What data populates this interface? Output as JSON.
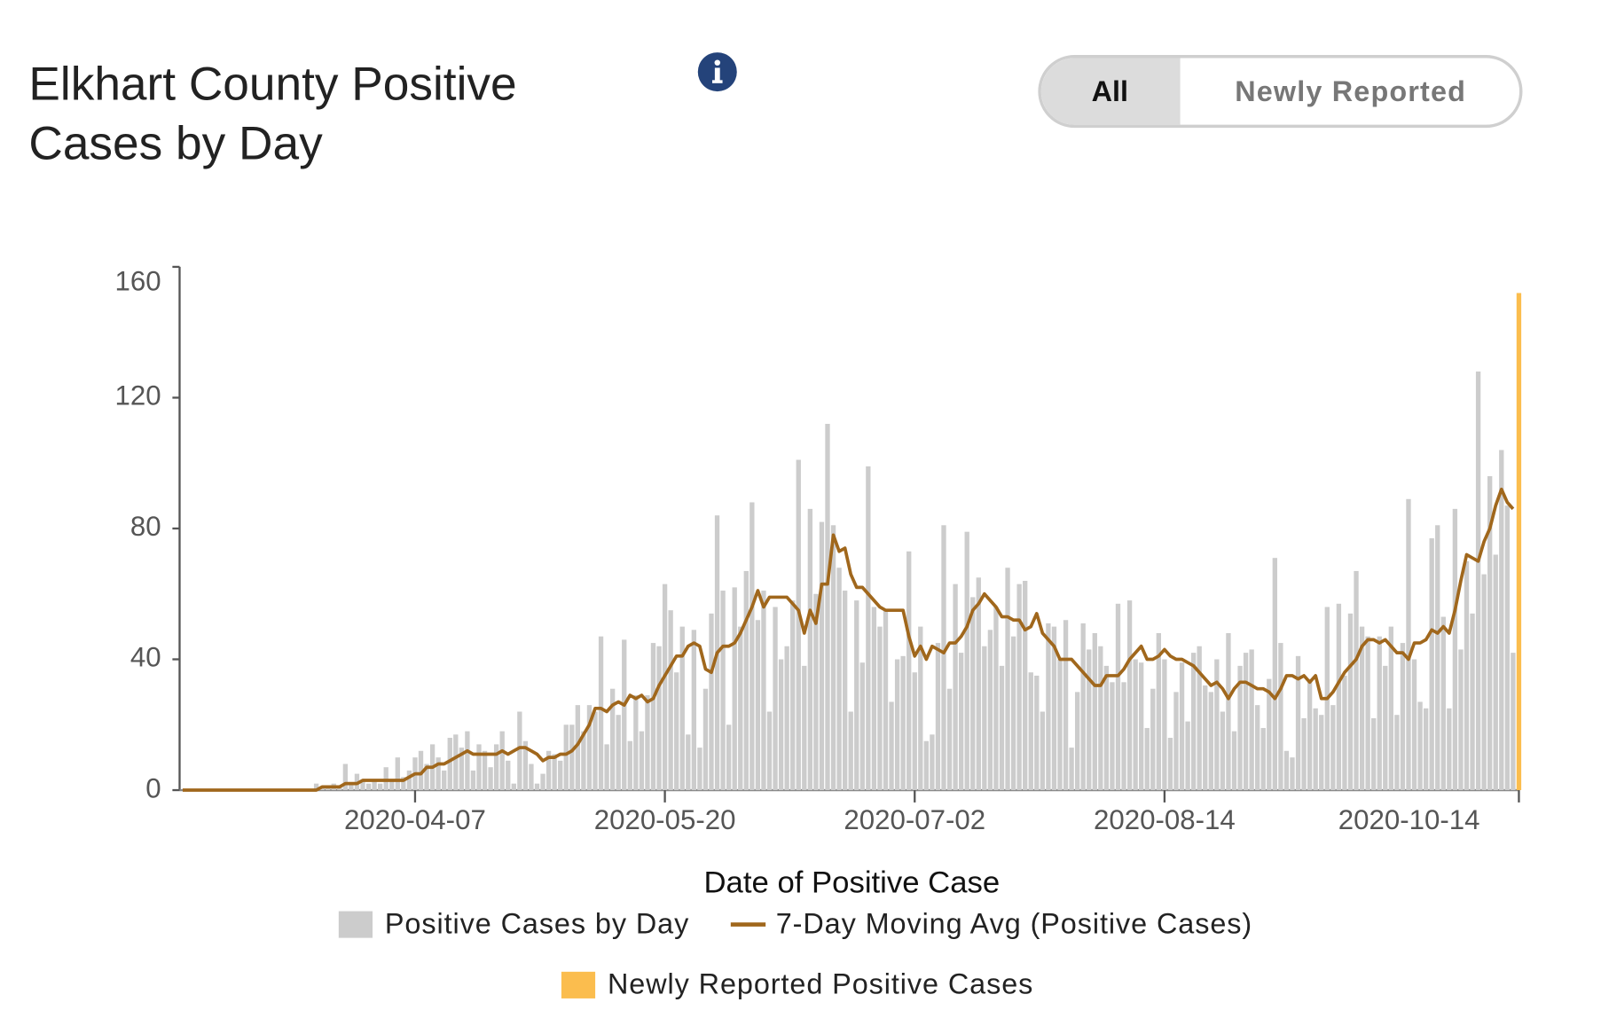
{
  "chart_data": {
    "type": "bar",
    "title": "Elkhart County Positive Cases by Day",
    "x_label": "Date of Positive Case",
    "x": [
      "2020-02-27",
      "2020-02-28",
      "2020-02-29",
      "2020-03-01",
      "2020-03-02",
      "2020-03-03",
      "2020-03-04",
      "2020-03-05",
      "2020-03-06",
      "2020-03-07",
      "2020-03-08",
      "2020-03-09",
      "2020-03-10",
      "2020-03-11",
      "2020-03-12",
      "2020-03-13",
      "2020-03-14",
      "2020-03-15",
      "2020-03-16",
      "2020-03-17",
      "2020-03-18",
      "2020-03-19",
      "2020-03-20",
      "2020-03-21",
      "2020-03-22",
      "2020-03-23",
      "2020-03-24",
      "2020-03-25",
      "2020-03-26",
      "2020-03-27",
      "2020-03-28",
      "2020-03-29",
      "2020-03-30",
      "2020-03-31",
      "2020-04-01",
      "2020-04-02",
      "2020-04-03",
      "2020-04-04",
      "2020-04-05",
      "2020-04-06",
      "2020-04-07",
      "2020-04-08",
      "2020-04-09",
      "2020-04-10",
      "2020-04-11",
      "2020-04-12",
      "2020-04-13",
      "2020-04-14",
      "2020-04-15",
      "2020-04-16",
      "2020-04-17",
      "2020-04-18",
      "2020-04-19",
      "2020-04-20",
      "2020-04-21",
      "2020-04-22",
      "2020-04-23",
      "2020-04-24",
      "2020-04-25",
      "2020-04-26",
      "2020-04-27",
      "2020-04-28",
      "2020-04-29",
      "2020-04-30",
      "2020-05-01",
      "2020-05-02",
      "2020-05-03",
      "2020-05-04",
      "2020-05-05",
      "2020-05-06",
      "2020-05-07",
      "2020-05-08",
      "2020-05-09",
      "2020-05-10",
      "2020-05-11",
      "2020-05-12",
      "2020-05-13",
      "2020-05-14",
      "2020-05-15",
      "2020-05-16",
      "2020-05-17",
      "2020-05-18",
      "2020-05-19",
      "2020-05-20",
      "2020-05-21",
      "2020-05-22",
      "2020-05-23",
      "2020-05-24",
      "2020-05-25",
      "2020-05-26",
      "2020-05-27",
      "2020-05-28",
      "2020-05-29",
      "2020-05-30",
      "2020-05-31",
      "2020-06-01",
      "2020-06-02",
      "2020-06-03",
      "2020-06-04",
      "2020-06-05",
      "2020-06-06",
      "2020-06-07",
      "2020-06-08",
      "2020-06-09",
      "2020-06-10",
      "2020-06-11",
      "2020-06-12",
      "2020-06-13",
      "2020-06-14",
      "2020-06-15",
      "2020-06-16",
      "2020-06-17",
      "2020-06-18",
      "2020-06-19",
      "2020-06-20",
      "2020-06-21",
      "2020-06-22",
      "2020-06-23",
      "2020-06-24",
      "2020-06-25",
      "2020-06-26",
      "2020-06-27",
      "2020-06-28",
      "2020-06-29",
      "2020-06-30",
      "2020-07-01",
      "2020-07-02",
      "2020-07-03",
      "2020-07-04",
      "2020-07-05",
      "2020-07-06",
      "2020-07-07",
      "2020-07-08",
      "2020-07-09",
      "2020-07-10",
      "2020-07-11",
      "2020-07-12",
      "2020-07-13",
      "2020-07-14",
      "2020-07-15",
      "2020-07-16",
      "2020-07-17",
      "2020-07-18",
      "2020-07-19",
      "2020-07-20",
      "2020-07-21",
      "2020-07-22",
      "2020-07-23",
      "2020-07-24",
      "2020-07-25",
      "2020-07-26",
      "2020-07-27",
      "2020-07-28",
      "2020-07-29",
      "2020-07-30",
      "2020-07-31",
      "2020-08-01",
      "2020-08-02",
      "2020-08-03",
      "2020-08-04",
      "2020-08-05",
      "2020-08-06",
      "2020-08-07",
      "2020-08-08",
      "2020-08-09",
      "2020-08-10",
      "2020-08-11",
      "2020-08-12",
      "2020-08-13",
      "2020-08-14",
      "2020-08-15",
      "2020-08-16",
      "2020-08-17",
      "2020-08-18",
      "2020-08-19",
      "2020-08-20",
      "2020-08-21",
      "2020-08-22",
      "2020-08-23",
      "2020-08-24",
      "2020-08-25",
      "2020-08-26",
      "2020-08-27",
      "2020-08-28",
      "2020-08-29",
      "2020-08-30",
      "2020-08-31",
      "2020-09-01",
      "2020-09-02",
      "2020-09-03",
      "2020-09-04",
      "2020-09-05",
      "2020-09-06",
      "2020-09-07",
      "2020-09-08",
      "2020-09-09",
      "2020-09-10",
      "2020-09-11",
      "2020-09-12",
      "2020-09-13",
      "2020-09-14",
      "2020-09-15",
      "2020-09-16",
      "2020-09-17",
      "2020-09-18",
      "2020-09-19",
      "2020-09-20",
      "2020-09-21",
      "2020-09-22",
      "2020-09-23",
      "2020-09-24",
      "2020-09-25",
      "2020-09-26",
      "2020-09-27",
      "2020-09-28",
      "2020-09-29",
      "2020-09-30",
      "2020-10-01",
      "2020-10-02",
      "2020-10-03",
      "2020-10-04",
      "2020-10-05",
      "2020-10-06",
      "2020-10-07",
      "2020-10-08",
      "2020-10-09",
      "2020-10-10",
      "2020-10-11",
      "2020-10-12",
      "2020-10-13",
      "2020-10-14"
    ],
    "series": [
      {
        "name": "Positive Cases by Day",
        "type": "bar",
        "color": "#cccccc",
        "values": [
          0,
          0,
          0,
          0,
          0,
          0,
          0,
          0,
          0,
          0,
          0,
          0,
          0,
          0,
          0,
          0,
          0,
          0,
          0,
          0,
          0,
          0,
          0,
          2,
          1,
          1,
          2,
          1,
          8,
          2,
          5,
          3,
          2,
          3,
          2,
          7,
          3,
          10,
          4,
          6,
          10,
          12,
          8,
          14,
          10,
          6,
          16,
          17,
          13,
          18,
          6,
          14,
          12,
          7,
          14,
          18,
          9,
          2,
          24,
          15,
          8,
          2,
          5,
          12,
          11,
          9,
          20,
          20,
          26,
          18,
          26,
          24,
          47,
          14,
          31,
          23,
          46,
          15,
          29,
          18,
          29,
          45,
          44,
          63,
          55,
          36,
          50,
          17,
          49,
          13,
          31,
          54,
          84,
          61,
          20,
          62,
          50,
          67,
          88,
          52,
          61,
          24,
          56,
          40,
          44,
          58,
          101,
          38,
          86,
          60,
          82,
          112,
          81,
          68,
          61,
          24,
          58,
          39,
          99,
          56,
          50,
          55,
          27,
          40,
          41,
          73,
          36,
          50,
          15,
          17,
          45,
          81,
          31,
          63,
          42,
          79,
          59,
          65,
          44,
          49,
          56,
          38,
          68,
          47,
          63,
          64,
          36,
          35,
          24,
          51,
          50,
          40,
          52,
          13,
          30,
          51,
          43,
          48,
          44,
          38,
          33,
          57,
          33,
          58,
          40,
          39,
          19,
          31,
          48,
          40,
          16,
          30,
          39,
          21,
          42,
          44,
          32,
          30,
          40,
          24,
          48,
          18,
          38,
          42,
          43,
          26,
          19,
          34,
          71,
          45,
          12,
          10,
          41,
          22,
          34,
          25,
          23,
          56,
          26,
          57,
          35,
          54,
          67,
          50,
          47,
          22,
          47,
          38,
          50,
          23,
          45,
          89,
          40,
          27,
          25,
          77,
          81,
          53,
          25,
          86,
          43,
          70,
          54,
          128,
          66,
          96,
          72,
          104,
          87,
          42,
          null
        ]
      },
      {
        "name": "7-Day Moving Avg (Positive Cases)",
        "type": "line",
        "color": "#a0671c",
        "values": [
          0,
          0,
          0,
          0,
          0,
          0,
          0,
          0,
          0,
          0,
          0,
          0,
          0,
          0,
          0,
          0,
          0,
          0,
          0,
          0,
          0,
          0,
          0,
          0,
          1,
          1,
          1,
          1,
          2,
          2,
          2,
          3,
          3,
          3,
          3,
          3,
          3,
          3,
          3,
          4,
          5,
          5,
          7,
          7,
          8,
          8,
          9,
          10,
          11,
          12,
          11,
          11,
          11,
          11,
          11,
          12,
          11,
          12,
          13,
          13,
          12,
          11,
          9,
          10,
          10,
          11,
          11,
          12,
          14,
          17,
          20,
          25,
          25,
          24,
          26,
          27,
          26,
          29,
          28,
          29,
          27,
          28,
          32,
          35,
          38,
          41,
          41,
          44,
          45,
          44,
          37,
          36,
          42,
          44,
          44,
          45,
          48,
          52,
          56,
          61,
          56,
          59,
          59,
          59,
          59,
          57,
          55,
          48,
          55,
          51,
          63,
          63,
          78,
          73,
          74,
          66,
          62,
          62,
          60,
          58,
          56,
          55,
          55,
          55,
          55,
          47,
          41,
          44,
          40,
          44,
          43,
          42,
          45,
          45,
          47,
          50,
          55,
          57,
          60,
          58,
          56,
          53,
          53,
          52,
          52,
          49,
          50,
          54,
          48,
          46,
          44,
          40,
          40,
          40,
          38,
          36,
          34,
          32,
          32,
          35,
          35,
          35,
          37,
          40,
          42,
          44,
          40,
          40,
          41,
          43,
          41,
          40,
          40,
          39,
          38,
          36,
          34,
          32,
          33,
          31,
          28,
          31,
          33,
          33,
          32,
          31,
          31,
          30,
          28,
          31,
          35,
          35,
          34,
          35,
          33,
          35,
          28,
          28,
          30,
          33,
          36,
          38,
          40,
          44,
          46,
          46,
          45,
          46,
          44,
          42,
          42,
          40,
          45,
          45,
          46,
          49,
          48,
          50,
          48,
          55,
          64,
          72,
          71,
          70,
          76,
          80,
          87,
          92,
          88,
          86,
          null
        ]
      },
      {
        "name": "Newly Reported Positive Cases",
        "type": "bar",
        "color": "#fbbd4e",
        "x": [
          "2020-10-14"
        ],
        "values": [
          152
        ]
      }
    ],
    "xlim": [
      "2020-02-27",
      "2020-10-14"
    ],
    "xticks": [
      "2020-04-07",
      "2020-05-20",
      "2020-07-02",
      "2020-08-14",
      "2020-10-14"
    ],
    "ylim": [
      0,
      160
    ],
    "yticks": [
      0,
      40,
      80,
      120,
      160
    ],
    "grid": false
  },
  "controls": {
    "options": [
      "All",
      "Newly Reported"
    ],
    "selected": 0
  }
}
